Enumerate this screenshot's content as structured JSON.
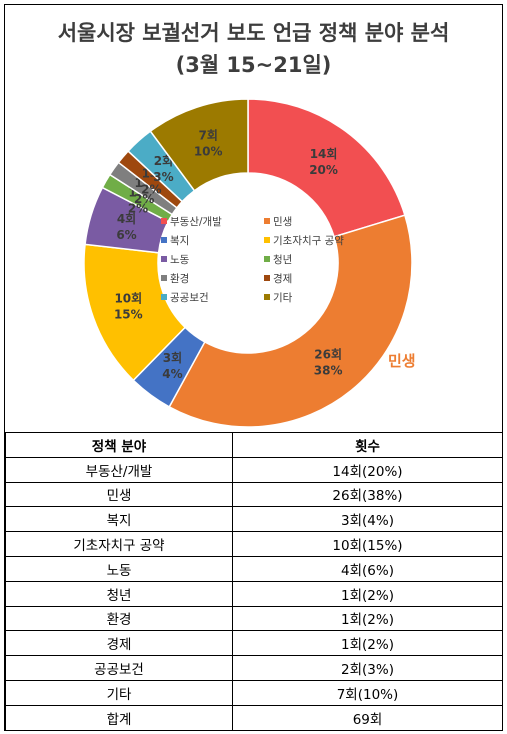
{
  "chart_data": {
    "type": "pie",
    "title_line1": "서울시장 보궐선거 보도 언급 정책 분야 분석",
    "title_line2": "(3월 15~21일)",
    "slices": [
      {
        "name": "부동산/개발",
        "count": 14,
        "count_label": "14회",
        "pct_label": "20%",
        "color": "#f24f51"
      },
      {
        "name": "민생",
        "count": 26,
        "count_label": "26회",
        "pct_label": "38%",
        "color": "#ed7d31"
      },
      {
        "name": "복지",
        "count": 3,
        "count_label": "3회",
        "pct_label": "4%",
        "color": "#4473c5"
      },
      {
        "name": "기초자치구 공약",
        "count": 10,
        "count_label": "10회",
        "pct_label": "15%",
        "color": "#ffc000"
      },
      {
        "name": "노동",
        "count": 4,
        "count_label": "4회",
        "pct_label": "6%",
        "color": "#7a5ba3"
      },
      {
        "name": "청년",
        "count": 1,
        "count_label": "1회",
        "pct_label": "2%",
        "color": "#70ad47"
      },
      {
        "name": "환경",
        "count": 1,
        "count_label": "1회",
        "pct_label": "2%",
        "color": "#7f7f7f"
      },
      {
        "name": "경제",
        "count": 1,
        "count_label": "1회",
        "pct_label": "2%",
        "color": "#9e480e"
      },
      {
        "name": "공공보건",
        "count": 2,
        "count_label": "2회",
        "pct_label": "3%",
        "color": "#4bacc6"
      },
      {
        "name": "기타",
        "count": 7,
        "count_label": "7회",
        "pct_label": "10%",
        "color": "#9c7a00"
      }
    ],
    "callout": "민생",
    "callout_color": "#ed7d31",
    "legend_position": "center"
  },
  "table": {
    "headers": [
      "정책 분야",
      "횟수"
    ],
    "rows": [
      [
        "부동산/개발",
        "14회(20%)"
      ],
      [
        "민생",
        "26회(38%)"
      ],
      [
        "복지",
        "3회(4%)"
      ],
      [
        "기초자치구 공약",
        "10회(15%)"
      ],
      [
        "노동",
        "4회(6%)"
      ],
      [
        "청년",
        "1회(2%)"
      ],
      [
        "환경",
        "1회(2%)"
      ],
      [
        "경제",
        "1회(2%)"
      ],
      [
        "공공보건",
        "2회(3%)"
      ],
      [
        "기타",
        "7회(10%)"
      ],
      [
        "합계",
        "69회"
      ]
    ]
  }
}
